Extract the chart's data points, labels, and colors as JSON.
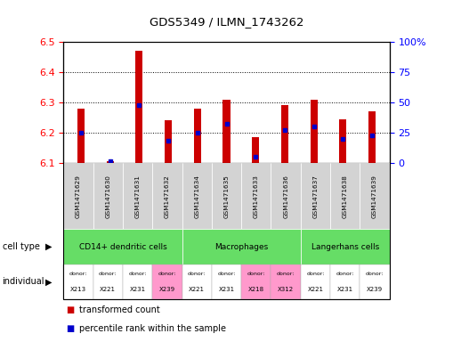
{
  "title": "GDS5349 / ILMN_1743262",
  "samples": [
    "GSM1471629",
    "GSM1471630",
    "GSM1471631",
    "GSM1471632",
    "GSM1471634",
    "GSM1471635",
    "GSM1471633",
    "GSM1471636",
    "GSM1471637",
    "GSM1471638",
    "GSM1471639"
  ],
  "red_values": [
    6.28,
    6.105,
    6.47,
    6.24,
    6.28,
    6.31,
    6.185,
    6.29,
    6.31,
    6.245,
    6.27
  ],
  "blue_values_pct": [
    25,
    1,
    48,
    18,
    25,
    32,
    5,
    27,
    30,
    20,
    23
  ],
  "y_min": 6.1,
  "y_max": 6.5,
  "y_ticks": [
    6.1,
    6.2,
    6.3,
    6.4,
    6.5
  ],
  "y2_ticks": [
    0,
    25,
    50,
    75,
    100
  ],
  "y2_labels": [
    "0",
    "25",
    "50",
    "75",
    "100%"
  ],
  "cell_type_groups": [
    {
      "label": "CD14+ dendritic cells",
      "start": 0,
      "end": 3
    },
    {
      "label": "Macrophages",
      "start": 4,
      "end": 7
    },
    {
      "label": "Langerhans cells",
      "start": 8,
      "end": 10
    }
  ],
  "donors": [
    "X213",
    "X221",
    "X231",
    "X239",
    "X221",
    "X231",
    "X218",
    "X312",
    "X221",
    "X231",
    "X239"
  ],
  "donor_colors": [
    "#ffffff",
    "#ffffff",
    "#ffffff",
    "#FF99CC",
    "#ffffff",
    "#ffffff",
    "#FF99CC",
    "#FF99CC",
    "#ffffff",
    "#ffffff",
    "#ffffff"
  ],
  "cell_type_color": "#66DD66",
  "sample_bg_color": "#D3D3D3",
  "red_color": "#CC0000",
  "blue_color": "#0000CC",
  "bar_width": 0.25,
  "legend_red": "transformed count",
  "legend_blue": "percentile rank within the sample"
}
